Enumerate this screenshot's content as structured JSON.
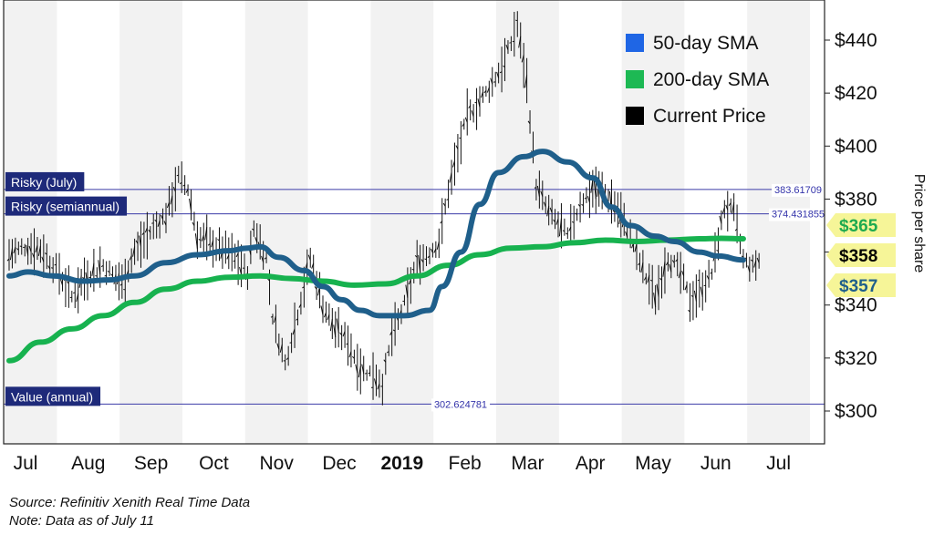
{
  "chart_data": {
    "type": "line",
    "x_axis": {
      "tick_labels": [
        "Jul",
        "Aug",
        "Sep",
        "Oct",
        "Nov",
        "Dec",
        "2019",
        "Feb",
        "Mar",
        "Apr",
        "May",
        "Jun",
        "Jul"
      ],
      "bold_label": "2019",
      "shaded_alternate_months": true
    },
    "y_axis": {
      "label": "Price per share",
      "position": "right",
      "range": [
        285,
        450
      ],
      "ticks": [
        300,
        320,
        340,
        360,
        380,
        400,
        420,
        440
      ],
      "tick_labels": [
        "$300",
        "$320",
        "$340",
        "$360",
        "$380",
        "$400",
        "$420",
        "$440"
      ]
    },
    "legend": {
      "placement": "top-right",
      "entries": [
        {
          "name": "50-day SMA",
          "color": "#1f66e5"
        },
        {
          "name": "200-day SMA",
          "color": "#1db954"
        },
        {
          "name": "Current Price",
          "color": "#000000"
        }
      ]
    },
    "reference_lines": [
      {
        "label": "Risky (July)",
        "value": 383.61709,
        "value_text": "383.61709"
      },
      {
        "label": "Risky (semiannual)",
        "value": 374.431855,
        "value_text": "374.431855"
      },
      {
        "label": "Value (annual)",
        "value": 302.624781,
        "value_text": "302.624781"
      }
    ],
    "series": [
      {
        "name": "50-day SMA",
        "color": "#1f5f8b",
        "points": [
          [
            0,
            351
          ],
          [
            0.3,
            352.5
          ],
          [
            0.7,
            351
          ],
          [
            1.2,
            349
          ],
          [
            1.6,
            349.5
          ],
          [
            2.0,
            351
          ],
          [
            2.5,
            356
          ],
          [
            3.0,
            359
          ],
          [
            3.5,
            360.5
          ],
          [
            3.8,
            361.5
          ],
          [
            4.0,
            362
          ],
          [
            4.3,
            358
          ],
          [
            4.7,
            353
          ],
          [
            5.0,
            347
          ],
          [
            5.3,
            342
          ],
          [
            5.6,
            338
          ],
          [
            5.9,
            336
          ],
          [
            6.3,
            336
          ],
          [
            6.7,
            338
          ],
          [
            6.9,
            347
          ],
          [
            7.2,
            360
          ],
          [
            7.5,
            378
          ],
          [
            7.8,
            390
          ],
          [
            8.2,
            396
          ],
          [
            8.5,
            398
          ],
          [
            8.9,
            394
          ],
          [
            9.3,
            388
          ],
          [
            9.6,
            377
          ],
          [
            9.9,
            370
          ],
          [
            10.3,
            366
          ],
          [
            10.6,
            364
          ],
          [
            11.0,
            360
          ],
          [
            11.3,
            358.5
          ],
          [
            11.7,
            357
          ]
        ]
      },
      {
        "name": "200-day SMA",
        "color": "#17b24f",
        "points": [
          [
            0,
            319
          ],
          [
            0.5,
            326
          ],
          [
            1.0,
            331
          ],
          [
            1.5,
            336
          ],
          [
            2.0,
            341
          ],
          [
            2.5,
            346
          ],
          [
            3.0,
            349
          ],
          [
            3.5,
            350.5
          ],
          [
            4.0,
            351
          ],
          [
            4.5,
            350
          ],
          [
            5.0,
            349
          ],
          [
            5.5,
            347.5
          ],
          [
            6.0,
            348
          ],
          [
            6.5,
            351
          ],
          [
            7.0,
            355
          ],
          [
            7.5,
            359
          ],
          [
            8.0,
            361.5
          ],
          [
            8.5,
            362
          ],
          [
            9.0,
            363.5
          ],
          [
            9.5,
            364.5
          ],
          [
            10.0,
            364
          ],
          [
            10.5,
            364.5
          ],
          [
            11.0,
            365
          ],
          [
            11.35,
            365.2
          ],
          [
            11.7,
            365
          ]
        ]
      },
      {
        "name": "Current Price",
        "color": "#000000",
        "style": "daily-bars",
        "points": [
          [
            0.0,
            359
          ],
          [
            0.25,
            362
          ],
          [
            0.5,
            361
          ],
          [
            0.8,
            352
          ],
          [
            1.0,
            343
          ],
          [
            1.2,
            350
          ],
          [
            1.5,
            355
          ],
          [
            1.8,
            348
          ],
          [
            2.0,
            360
          ],
          [
            2.3,
            369
          ],
          [
            2.5,
            374
          ],
          [
            2.7,
            388
          ],
          [
            2.85,
            384
          ],
          [
            3.0,
            366
          ],
          [
            3.3,
            362
          ],
          [
            3.6,
            358
          ],
          [
            3.8,
            352
          ],
          [
            3.9,
            369
          ],
          [
            4.1,
            358
          ],
          [
            4.2,
            336
          ],
          [
            4.4,
            318
          ],
          [
            4.6,
            337
          ],
          [
            4.8,
            358
          ],
          [
            5.0,
            340
          ],
          [
            5.2,
            331
          ],
          [
            5.4,
            326
          ],
          [
            5.6,
            316
          ],
          [
            5.8,
            314
          ],
          [
            5.95,
            310
          ],
          [
            6.1,
            328
          ],
          [
            6.3,
            340
          ],
          [
            6.5,
            356
          ],
          [
            6.7,
            360
          ],
          [
            6.85,
            364
          ],
          [
            7.0,
            383
          ],
          [
            7.3,
            411
          ],
          [
            7.6,
            420
          ],
          [
            7.9,
            432
          ],
          [
            8.1,
            446
          ],
          [
            8.25,
            424
          ],
          [
            8.4,
            385
          ],
          [
            8.6,
            375
          ],
          [
            8.9,
            366
          ],
          [
            9.1,
            378
          ],
          [
            9.3,
            384
          ],
          [
            9.5,
            382
          ],
          [
            9.7,
            376
          ],
          [
            9.9,
            366
          ],
          [
            10.1,
            353
          ],
          [
            10.3,
            343
          ],
          [
            10.5,
            358
          ],
          [
            10.7,
            352
          ],
          [
            10.85,
            342
          ],
          [
            11.0,
            345
          ],
          [
            11.2,
            352
          ],
          [
            11.4,
            377
          ],
          [
            11.55,
            375
          ],
          [
            11.7,
            357
          ],
          [
            11.85,
            354
          ],
          [
            12.0,
            358
          ]
        ]
      }
    ],
    "current_value_tags": [
      {
        "text": "$365",
        "value": 365,
        "fill": "#f6f598",
        "text_color": "#1eaa50"
      },
      {
        "text": "$358",
        "value": 358,
        "fill": "#f6f598",
        "text_color": "#000000"
      },
      {
        "text": "$357",
        "value": 357,
        "fill": "#f6f598",
        "text_color": "#1f5f8b"
      }
    ]
  },
  "footer": {
    "source": "Source: Refinitiv Xenith Real Time Data",
    "note": "Note: Data as of July 11"
  }
}
